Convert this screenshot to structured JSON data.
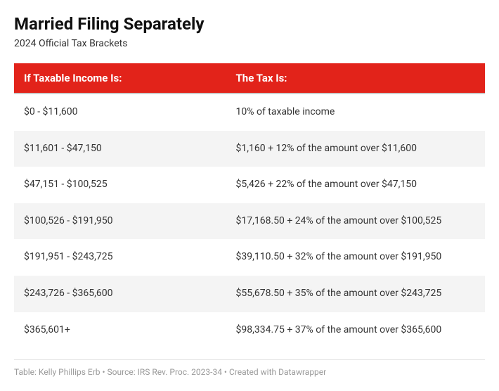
{
  "header": {
    "title": "Married Filing Separately",
    "subtitle": "2024 Official Tax Brackets"
  },
  "table": {
    "type": "table",
    "header_bg": "#e2231a",
    "header_text_color": "#ffffff",
    "row_alt_bg": "#f4f4f4",
    "row_bg": "#ffffff",
    "columns": [
      {
        "label": "If Taxable Income Is:",
        "width": "45%"
      },
      {
        "label": "The Tax Is:",
        "width": "55%"
      }
    ],
    "rows": [
      {
        "income": "$0 - $11,600",
        "tax": "10% of taxable income"
      },
      {
        "income": "$11,601 - $47,150",
        "tax": "$1,160 + 12% of the amount over $11,600"
      },
      {
        "income": "$47,151 - $100,525",
        "tax": "$5,426 + 22% of the amount over $47,150"
      },
      {
        "income": "$100,526 - $191,950",
        "tax": "$17,168.50 + 24% of the amount over $100,525"
      },
      {
        "income": "$191,951 - $243,725",
        "tax": "$39,110.50 + 32% of the amount over $191,950"
      },
      {
        "income": "$243,726 - $365,600",
        "tax": "$55,678.50 + 35% of the amount over $243,725"
      },
      {
        "income": "$365,601+",
        "tax": "$98,334.75 + 37% of the amount over $365,600"
      }
    ]
  },
  "footer": {
    "text": "Table: Kelly Phillips Erb • Source: IRS Rev. Proc. 2023-34 • Created with Datawrapper"
  }
}
